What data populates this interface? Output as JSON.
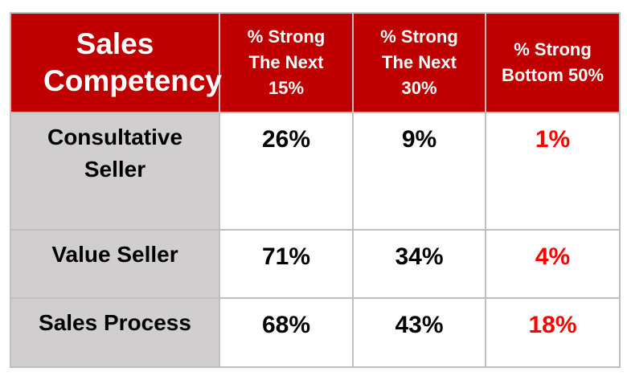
{
  "table": {
    "header": [
      "Sales Competency",
      "% Strong The Next 15%",
      "% Strong The Next 30%",
      "% Strong Bottom 50%"
    ],
    "rows": [
      [
        "Consultative Seller",
        "26%",
        "9%",
        "1%"
      ],
      [
        "Value Seller",
        "71%",
        "34%",
        "4%"
      ],
      [
        "Sales Process",
        "68%",
        "43%",
        "18%"
      ]
    ]
  }
}
